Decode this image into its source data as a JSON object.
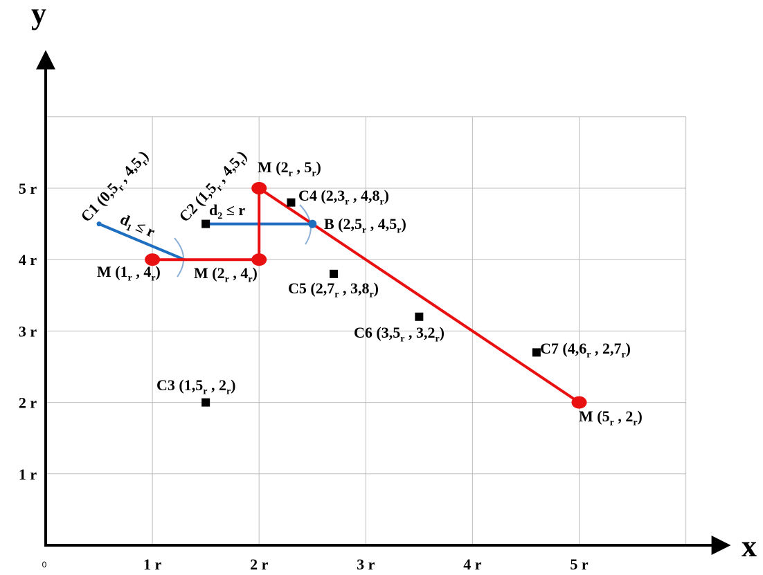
{
  "axes": {
    "x_title": "x",
    "y_title": "y",
    "origin_label": "0",
    "x_ticks": [
      "1 r",
      "2 r",
      "3 r",
      "4 r",
      "5 r"
    ],
    "y_ticks": [
      "1 r",
      "2 r",
      "3 r",
      "4 r",
      "5 r"
    ],
    "x_range": [
      0,
      5.95
    ],
    "y_range": [
      0,
      5.95
    ]
  },
  "grid": {
    "x_max": 6,
    "y_max": 6,
    "x_label_positions": [
      1,
      2,
      3,
      4,
      5
    ],
    "y_label_positions": [
      1,
      2,
      3,
      4,
      5
    ]
  },
  "colors": {
    "path": "#e81010",
    "distance": "#1e6fbf",
    "arc": "#8aaed6",
    "grid": "#bdbdbd",
    "axis": "#000000",
    "node": "#000000"
  },
  "path": {
    "points": [
      [
        1,
        4
      ],
      [
        2,
        4
      ],
      [
        2,
        5
      ],
      [
        5,
        2
      ]
    ],
    "markers": [
      {
        "x": 1,
        "y": 4,
        "label": {
          "base": "M (1",
          "sub1": "r",
          "mid": " , 4",
          "sub2": "r",
          "end": ")"
        }
      },
      {
        "x": 2,
        "y": 4,
        "label": {
          "base": "M (2",
          "sub1": "r",
          "mid": " , 4",
          "sub2": "r",
          "end": ")"
        }
      },
      {
        "x": 2,
        "y": 5,
        "label": {
          "base": "M (2",
          "sub1": "r",
          "mid": " , 5",
          "sub2": "r",
          "end": ")"
        }
      },
      {
        "x": 5,
        "y": 2,
        "label": {
          "base": "M (5",
          "sub1": "r",
          "mid": " , 2",
          "sub2": "r",
          "end": ")"
        }
      }
    ]
  },
  "point_b": {
    "x": 2.5,
    "y": 4.5,
    "label": {
      "base": "B (2,5",
      "sub1": "r",
      "mid": " , 4,5",
      "sub2": "r",
      "end": ")"
    }
  },
  "clients": [
    {
      "id": "C1",
      "x": 0.5,
      "y": 4.5,
      "marker": "dot",
      "label": {
        "base": "C1 (0,5",
        "sub1": "r",
        "mid": " , 4,5",
        "sub2": "r",
        "end": ")"
      }
    },
    {
      "id": "C2",
      "x": 1.5,
      "y": 4.5,
      "marker": "square",
      "label": {
        "base": "C2 (1,5",
        "sub1": "r",
        "mid": " , 4,5",
        "sub2": "r",
        "end": ")"
      }
    },
    {
      "id": "C3",
      "x": 1.5,
      "y": 2,
      "marker": "square",
      "label": {
        "base": "C3 (1,5",
        "sub1": "r",
        "mid": " , 2",
        "sub2": "r",
        "end": ")"
      }
    },
    {
      "id": "C4",
      "x": 2.3,
      "y": 4.8,
      "marker": "square",
      "label": {
        "base": "C4 (2,3",
        "sub1": "r",
        "mid": " , 4,8",
        "sub2": "r",
        "end": ")"
      }
    },
    {
      "id": "C5",
      "x": 2.7,
      "y": 3.8,
      "marker": "square",
      "label": {
        "base": "C5 (2,7",
        "sub1": "r",
        "mid": " ,  3,8",
        "sub2": "r",
        "end": ")"
      }
    },
    {
      "id": "C6",
      "x": 3.5,
      "y": 3.2,
      "marker": "square",
      "label": {
        "base": "C6 (3,5",
        "sub1": "r",
        "mid": " , 3,2",
        "sub2": "r",
        "end": ")"
      }
    },
    {
      "id": "C7",
      "x": 4.6,
      "y": 2.7,
      "marker": "square",
      "label": {
        "base": "C7 (4,6",
        "sub1": "r",
        "mid": " , 2,7",
        "sub2": "r",
        "end": ")"
      }
    }
  ],
  "distances": [
    {
      "from": [
        0.5,
        4.5
      ],
      "to": [
        1.3,
        4
      ],
      "label": {
        "base": "d",
        "sub": "1",
        "rest": " ≤  r"
      }
    },
    {
      "from": [
        1.5,
        4.5
      ],
      "to": [
        2.5,
        4.5
      ],
      "label": {
        "base": "d",
        "sub": "2",
        "rest": " ≤  r"
      }
    }
  ]
}
